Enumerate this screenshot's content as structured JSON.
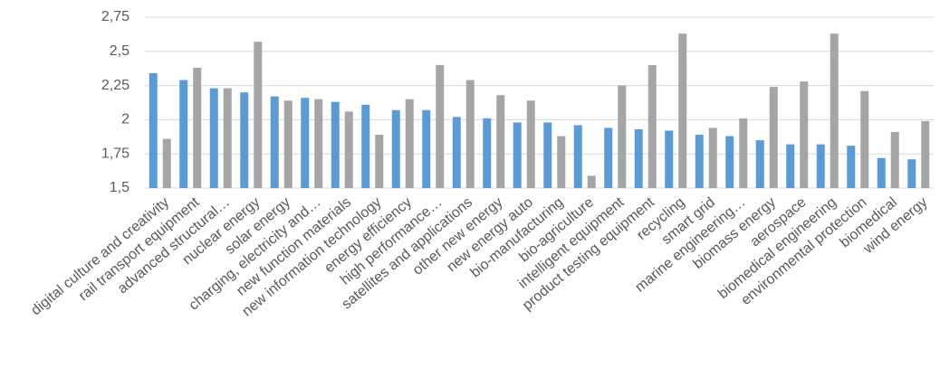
{
  "chart_data": {
    "type": "bar",
    "categories": [
      "digital culture and creativity",
      "rail transport equipment",
      "advanced structural…",
      "nuclear energy",
      "solar energy",
      "charging, electricity and…",
      "new function materials",
      "new information technology",
      "energy efficiency",
      "high performance…",
      "satellites and applications",
      "other new energy",
      "new energy auto",
      "bio-manufacturing",
      "bio-agriculture",
      "intelligent equipment",
      "product testing equipment",
      "recycling",
      "smart grid",
      "marine engineering…",
      "biomass energy",
      "aerospace",
      "biomedical engineering",
      "environmental protection",
      "biomedical",
      "wind energy"
    ],
    "series": [
      {
        "color": "#5b9bd5",
        "values": [
          2.34,
          2.29,
          2.23,
          2.2,
          2.17,
          2.16,
          2.13,
          2.11,
          2.07,
          2.07,
          2.02,
          2.01,
          1.98,
          1.98,
          1.96,
          1.94,
          1.93,
          1.92,
          1.89,
          1.88,
          1.85,
          1.82,
          1.82,
          1.81,
          1.72,
          1.71
        ]
      },
      {
        "color": "#a5a5a5",
        "values": [
          1.86,
          2.38,
          2.23,
          2.57,
          2.14,
          2.15,
          2.06,
          1.89,
          2.15,
          2.4,
          2.29,
          2.18,
          2.14,
          1.88,
          1.59,
          2.25,
          2.4,
          2.63,
          1.94,
          2.01,
          2.24,
          2.28,
          2.63,
          2.21,
          1.91,
          1.99
        ]
      }
    ],
    "ylim": [
      1.5,
      2.75
    ],
    "yticks": [
      {
        "value": 1.5,
        "label": "1,5"
      },
      {
        "value": 1.75,
        "label": "1,75"
      },
      2,
      {
        "value": 2.25,
        "label": "2,25"
      },
      {
        "value": 2.5,
        "label": "2,5"
      },
      {
        "value": 2.75,
        "label": "2,75"
      }
    ],
    "grid": true
  }
}
